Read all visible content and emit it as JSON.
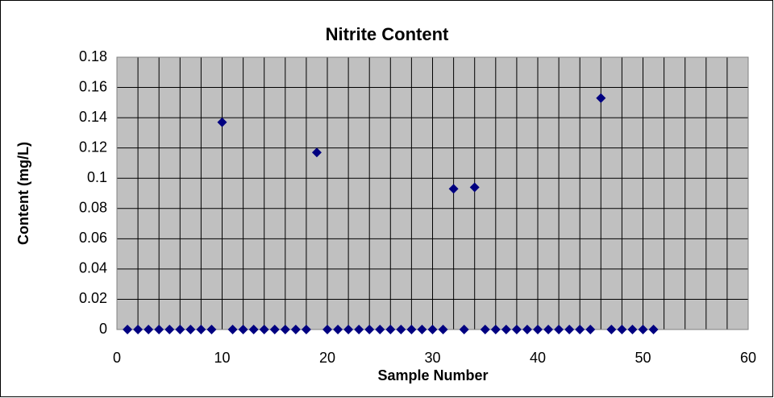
{
  "chart_data": {
    "type": "scatter",
    "title": "Nitrite Content",
    "x_label": "Sample Number",
    "y_label": "Content (mg/L)",
    "series": [
      {
        "name": "Nitrite",
        "color": "#000080",
        "x": [
          1,
          2,
          3,
          4,
          5,
          6,
          7,
          8,
          9,
          10,
          11,
          12,
          13,
          14,
          15,
          16,
          17,
          18,
          19,
          20,
          21,
          22,
          23,
          24,
          25,
          26,
          27,
          28,
          29,
          30,
          31,
          32,
          33,
          34,
          35,
          36,
          37,
          38,
          39,
          40,
          41,
          42,
          43,
          44,
          45,
          46,
          47,
          48,
          49,
          50,
          51
        ],
        "values": [
          0,
          0,
          0,
          0,
          0,
          0,
          0,
          0,
          0,
          0.137,
          0,
          0,
          0,
          0,
          0,
          0,
          0,
          0,
          0.117,
          0,
          0,
          0,
          0,
          0,
          0,
          0,
          0,
          0,
          0,
          0,
          0,
          0.093,
          0,
          0.094,
          0,
          0,
          0,
          0,
          0,
          0,
          0,
          0,
          0,
          0,
          0,
          0.153,
          0,
          0,
          0,
          0,
          0
        ]
      }
    ],
    "xlim": [
      0,
      60
    ],
    "xticks": [
      0,
      10,
      20,
      30,
      40,
      50,
      60
    ],
    "xgrid_minor": [
      2,
      4,
      6,
      8,
      12,
      14,
      16,
      18,
      22,
      24,
      26,
      28,
      32,
      34,
      36,
      38,
      42,
      44,
      46,
      48,
      52,
      54,
      56,
      58
    ],
    "ylim": [
      0,
      0.18
    ],
    "yticks": [
      0,
      0.02,
      0.04,
      0.06,
      0.08,
      0.1,
      0.12,
      0.14,
      0.16,
      0.18
    ],
    "grid": true,
    "plot_background": "#c0c0c0"
  }
}
